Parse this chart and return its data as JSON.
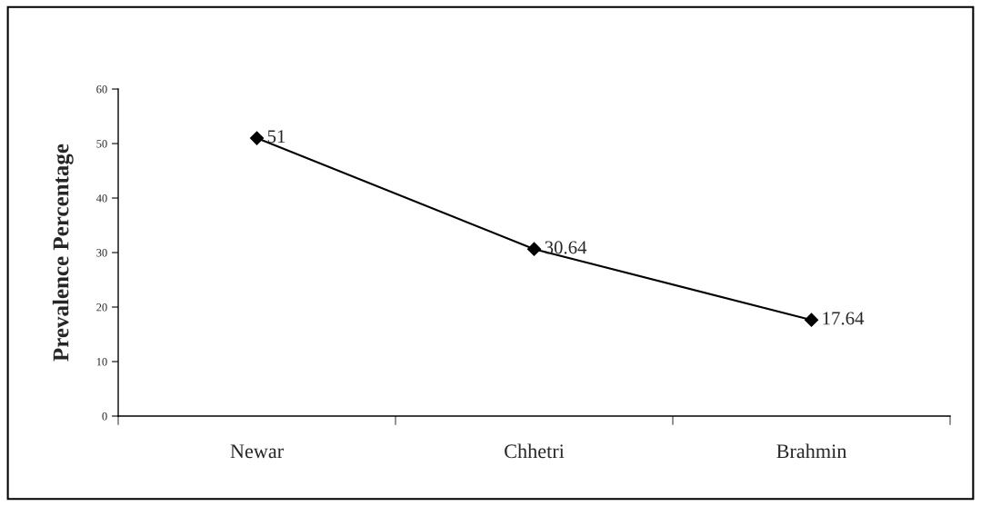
{
  "chart_data": {
    "type": "line",
    "ylabel": "Prevalence Percentage",
    "categories": [
      "Newar",
      "Chhetri",
      "Brahmin"
    ],
    "series": [
      {
        "color": "#000000",
        "values": [
          51,
          30.64,
          17.64
        ]
      }
    ],
    "ylim": [
      0,
      60
    ],
    "yticks": [
      0,
      10,
      20,
      30,
      40,
      50,
      60
    ],
    "marker": "diamond",
    "line_style": "solid",
    "data_labels": true,
    "grid": false
  }
}
